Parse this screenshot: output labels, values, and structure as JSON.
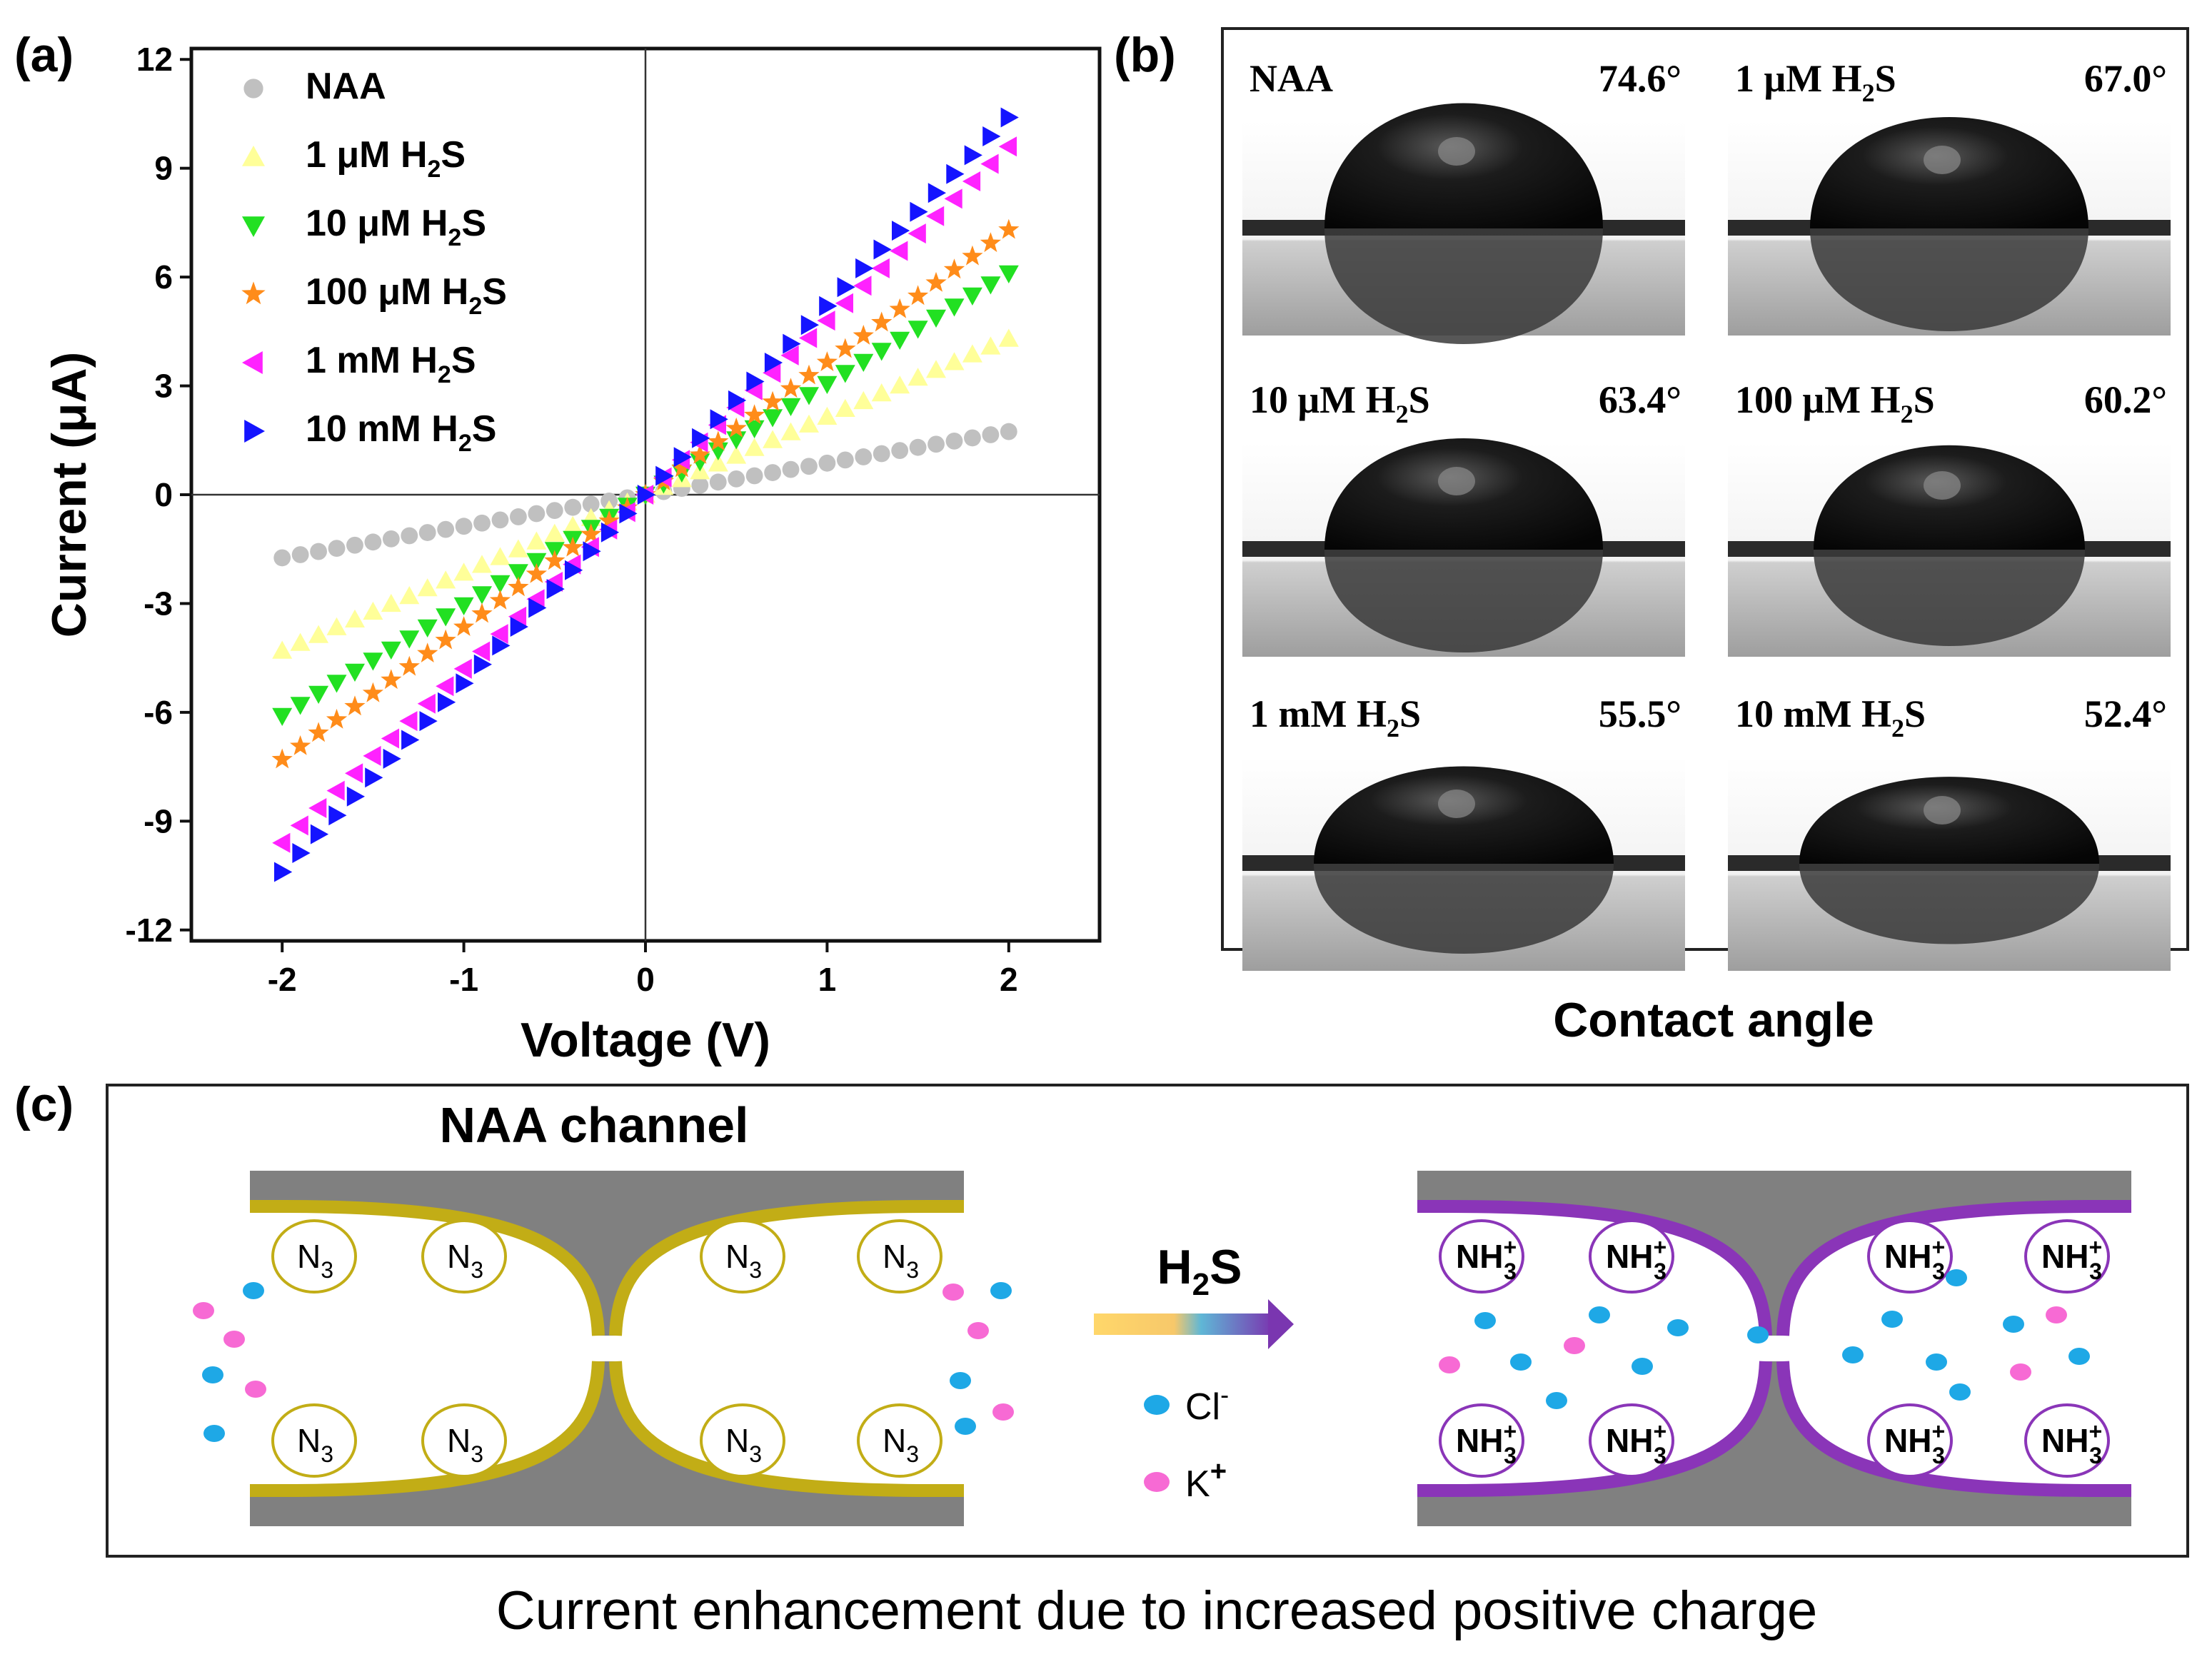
{
  "panel_a": {
    "label": "(a)",
    "chart_data": {
      "type": "scatter",
      "xlabel": "Voltage (V)",
      "ylabel": "Current (μA)",
      "xlim": [
        -2.5,
        2.5
      ],
      "ylim": [
        -12.3,
        12.3
      ],
      "x_ticks": [
        "-2",
        "-1",
        "0",
        "1",
        "2"
      ],
      "y_ticks": [
        "12",
        "9",
        "6",
        "3",
        "0",
        "-3",
        "-6",
        "-9",
        "-12"
      ],
      "x_tick_values": [
        -2,
        -1,
        0,
        1,
        2
      ],
      "y_tick_values": [
        12,
        9,
        6,
        3,
        0,
        -3,
        -6,
        -9,
        -12
      ],
      "x_range": [
        -2,
        2
      ],
      "n_points": 41,
      "legend_position": "top-left",
      "grid": false,
      "series": [
        {
          "name": "NAA",
          "name_main": "NAA",
          "name_sub": "",
          "name_tail": "",
          "slope": 0.87,
          "color": "#c0c0c0",
          "marker": "circle"
        },
        {
          "name": "1 μM H2S",
          "name_main": "1 μM H",
          "name_sub": "2",
          "name_tail": "S",
          "slope": 2.15,
          "color": "#ffff99",
          "marker": "triangle-up"
        },
        {
          "name": "10 μM H2S",
          "name_main": "10 μM H",
          "name_sub": "2",
          "name_tail": "S",
          "slope": 3.05,
          "color": "#22e022",
          "marker": "triangle-down"
        },
        {
          "name": "100 μM H2S",
          "name_main": "100 μM H",
          "name_sub": "2",
          "name_tail": "S",
          "slope": 3.65,
          "color": "#ff8c1a",
          "marker": "star"
        },
        {
          "name": "1 mM H2S",
          "name_main": "1 mM H",
          "name_sub": "2",
          "name_tail": "S",
          "slope": 4.8,
          "color": "#ff22ff",
          "marker": "triangle-left"
        },
        {
          "name": "10 mM H2S",
          "name_main": "10 mM H",
          "name_sub": "2",
          "name_tail": "S",
          "slope": 5.2,
          "color": "#1414ff",
          "marker": "triangle-right"
        }
      ]
    }
  },
  "panel_b": {
    "label": "(b)",
    "caption": "Contact angle",
    "images": [
      {
        "sample_main": "NAA",
        "sample_sub": "",
        "sample_tail": "",
        "angle": "74.6°"
      },
      {
        "sample_main": "1 μM H",
        "sample_sub": "2",
        "sample_tail": "S",
        "angle": "67.0°"
      },
      {
        "sample_main": "10 μM H",
        "sample_sub": "2",
        "sample_tail": "S",
        "angle": "63.4°"
      },
      {
        "sample_main": "100 μM H",
        "sample_sub": "2",
        "sample_tail": "S",
        "angle": "60.2°"
      },
      {
        "sample_main": "1 mM H",
        "sample_sub": "2",
        "sample_tail": "S",
        "angle": "55.5°"
      },
      {
        "sample_main": "10 mM H",
        "sample_sub": "2",
        "sample_tail": "S",
        "angle": "52.4°"
      }
    ]
  },
  "panel_c": {
    "label": "(c)",
    "title": "NAA channel",
    "group_left": {
      "main": "N",
      "sub": "3"
    },
    "group_right": {
      "main": "NH",
      "sub": "3",
      "sup": "+"
    },
    "arrow_label": {
      "main": "H",
      "sub": "2",
      "tail": "S"
    },
    "ion_cl": {
      "main": "Cl",
      "sup": "-"
    },
    "ion_k": {
      "main": "K",
      "sup": "+"
    },
    "caption": "Current enhancement due to increased positive charge",
    "colors": {
      "wall": "#808080",
      "naa_edge": "#c2ad16",
      "treated_edge": "#8a35b8",
      "cl": "#1ea8e6",
      "k": "#f76ad4"
    }
  }
}
